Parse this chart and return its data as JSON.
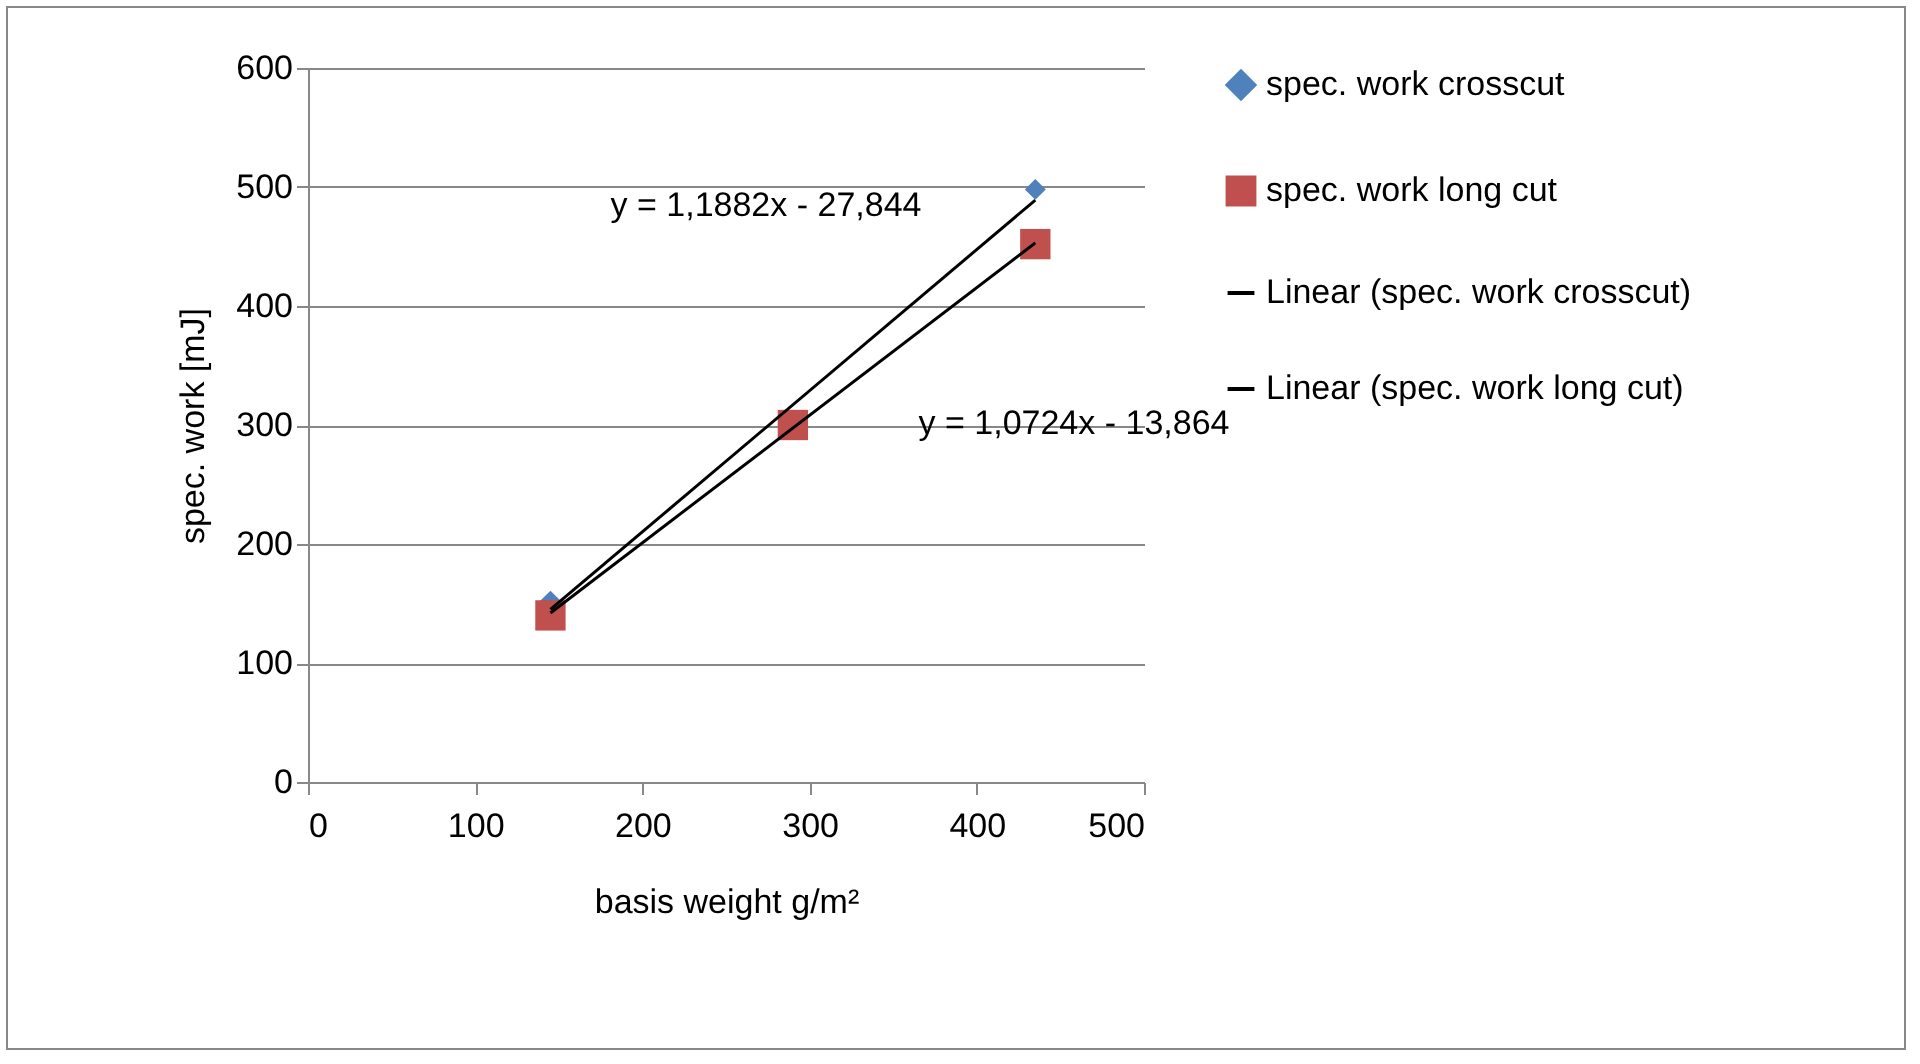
{
  "chart_data": {
    "type": "scatter",
    "xlabel": "basis weight g/m²",
    "ylabel": "spec. work [mJ]",
    "xlim": [
      0,
      500
    ],
    "xticks": [
      0,
      100,
      200,
      300,
      400,
      500
    ],
    "ylim": [
      0,
      600
    ],
    "yticks": [
      0,
      100,
      200,
      300,
      400,
      500,
      600
    ],
    "grid": "y",
    "legend": "right",
    "series": [
      {
        "name": "spec. work crosscut",
        "marker": "diamond",
        "color": "#4f81bd",
        "x": [
          145,
          290,
          435
        ],
        "values": [
          152,
          null,
          498
        ]
      },
      {
        "name": "spec. work long cut",
        "marker": "square",
        "color": "#c0504d",
        "x": [
          145,
          290,
          435
        ],
        "values": [
          140,
          300,
          452
        ]
      },
      {
        "name": "Linear (spec. work crosscut)",
        "type": "line",
        "line_style": "solid",
        "color": "#000000",
        "x": [
          145,
          435
        ],
        "values": [
          145,
          489
        ]
      },
      {
        "name": "Linear (spec. work long cut)",
        "type": "line",
        "line_style": "solid",
        "color": "#000000",
        "x": [
          145,
          435
        ],
        "values": [
          142,
          453
        ]
      }
    ],
    "annotations": [
      "y = 1,1882x - 27,844",
      "y = 1,0724x - 13,864"
    ]
  }
}
